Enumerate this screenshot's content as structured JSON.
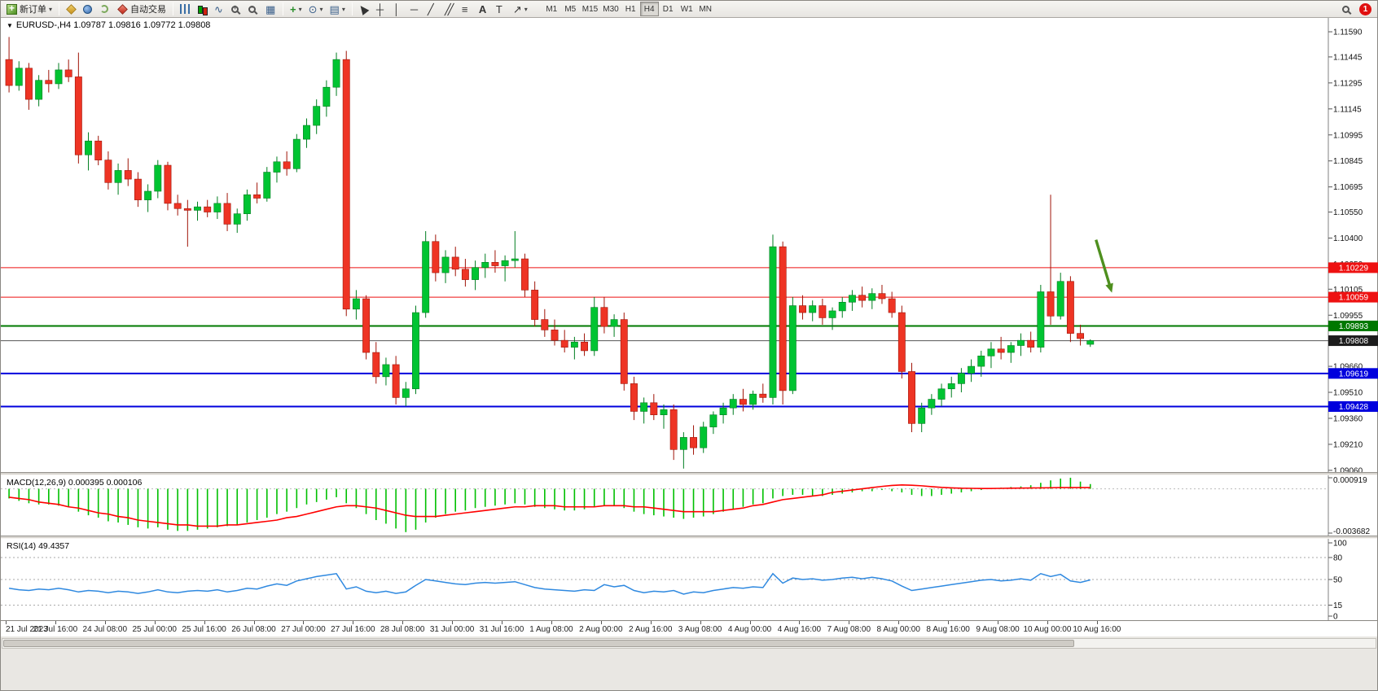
{
  "toolbar": {
    "new_order_label": "新订单",
    "autotrade_label": "自动交易",
    "timeframes": [
      "M1",
      "M5",
      "M15",
      "M30",
      "H1",
      "H4",
      "D1",
      "W1",
      "MN"
    ],
    "active_timeframe": "H4",
    "notification_badge": "1"
  },
  "chart_data": [
    {
      "type": "candlestick",
      "title": "EURUSD-,H4",
      "header": "EURUSD-,H4 1.09787 1.09816 1.09772 1.09808",
      "ohlc_last": {
        "open": 1.09787,
        "high": 1.09816,
        "low": 1.09772,
        "close": 1.09808
      },
      "ylim": [
        1.0905,
        1.1167
      ],
      "y_ticks": [
        1.1159,
        1.11445,
        1.11295,
        1.11145,
        1.10995,
        1.10845,
        1.10695,
        1.1055,
        1.104,
        1.1025,
        1.10105,
        1.09955,
        1.09805,
        1.0966,
        1.0951,
        1.0936,
        1.0921,
        1.0906
      ],
      "y_tick_labels": [
        "1.11590",
        "1.11445",
        "1.11295",
        "1.11145",
        "1.10995",
        "1.10845",
        "1.10695",
        "1.10550",
        "1.10400",
        "1.10250",
        "1.10105",
        "1.09955",
        "1.09805",
        "1.09660",
        "1.09510",
        "1.09360",
        "1.09210",
        "1.09060"
      ],
      "x_labels": [
        "21 Jul 2023",
        "21 Jul 16:00",
        "24 Jul 08:00",
        "25 Jul 00:00",
        "25 Jul 16:00",
        "26 Jul 08:00",
        "27 Jul 00:00",
        "27 Jul 16:00",
        "28 Jul 08:00",
        "31 Jul 00:00",
        "31 Jul 16:00",
        "1 Aug 08:00",
        "2 Aug 00:00",
        "2 Aug 16:00",
        "3 Aug 08:00",
        "4 Aug 00:00",
        "4 Aug 16:00",
        "7 Aug 08:00",
        "8 Aug 00:00",
        "8 Aug 16:00",
        "9 Aug 08:00",
        "10 Aug 00:00",
        "10 Aug 16:00"
      ],
      "h_lines": [
        {
          "price": 1.10229,
          "label": "1.10229",
          "color": "#ee1111",
          "width": 1
        },
        {
          "price": 1.10059,
          "label": "1.10059",
          "color": "#ee1111",
          "width": 1
        },
        {
          "price": 1.09893,
          "label": "1.09893",
          "color": "#007800",
          "width": 2
        },
        {
          "price": 1.09619,
          "label": "1.09619",
          "color": "#0000dd",
          "width": 2
        },
        {
          "price": 1.09428,
          "label": "1.09428",
          "color": "#0000dd",
          "width": 2
        }
      ],
      "bid_line": {
        "price": 1.09808,
        "label": "1.09808",
        "color": "#555555",
        "label_bg": "#1c1c1c"
      },
      "annotation_arrow": {
        "x1_frac": 0.826,
        "price1": 1.1039,
        "x2_frac": 0.838,
        "price2": 1.10085,
        "color": "#4e8f1e"
      },
      "colors": {
        "up": "#00c432",
        "up_stroke": "#007d20",
        "down": "#ee3424",
        "down_stroke": "#a01408"
      },
      "candles": [
        [
          1.1143,
          1.1156,
          1.1124,
          1.1128
        ],
        [
          1.1128,
          1.1142,
          1.1125,
          1.1138
        ],
        [
          1.1138,
          1.1141,
          1.1114,
          1.112
        ],
        [
          1.112,
          1.1134,
          1.1116,
          1.1131
        ],
        [
          1.1131,
          1.1137,
          1.1124,
          1.1129
        ],
        [
          1.1129,
          1.1141,
          1.1126,
          1.1137
        ],
        [
          1.1137,
          1.1143,
          1.113,
          1.1133
        ],
        [
          1.1133,
          1.1147,
          1.1083,
          1.1088
        ],
        [
          1.1088,
          1.1101,
          1.1079,
          1.1096
        ],
        [
          1.1096,
          1.1099,
          1.1082,
          1.1085
        ],
        [
          1.1085,
          1.109,
          1.1068,
          1.1072
        ],
        [
          1.1072,
          1.1083,
          1.1065,
          1.1079
        ],
        [
          1.1079,
          1.1086,
          1.107,
          1.1074
        ],
        [
          1.1074,
          1.1078,
          1.1058,
          1.1062
        ],
        [
          1.1062,
          1.1071,
          1.1055,
          1.1067
        ],
        [
          1.1067,
          1.1085,
          1.1063,
          1.1082
        ],
        [
          1.1082,
          1.1084,
          1.1056,
          1.106
        ],
        [
          1.106,
          1.1065,
          1.1053,
          1.1057
        ],
        [
          1.1057,
          1.1062,
          1.1035,
          1.1056
        ],
        [
          1.1056,
          1.1061,
          1.105,
          1.1058
        ],
        [
          1.1058,
          1.1062,
          1.1052,
          1.1055
        ],
        [
          1.1055,
          1.1064,
          1.1051,
          1.106
        ],
        [
          1.106,
          1.1066,
          1.1044,
          1.1048
        ],
        [
          1.1048,
          1.1057,
          1.1043,
          1.1054
        ],
        [
          1.1054,
          1.1068,
          1.105,
          1.1065
        ],
        [
          1.1065,
          1.1072,
          1.106,
          1.1063
        ],
        [
          1.1063,
          1.1081,
          1.1061,
          1.1078
        ],
        [
          1.1078,
          1.1087,
          1.1072,
          1.1084
        ],
        [
          1.1084,
          1.109,
          1.1076,
          1.108
        ],
        [
          1.108,
          1.11,
          1.1078,
          1.1097
        ],
        [
          1.1097,
          1.1109,
          1.1092,
          1.1105
        ],
        [
          1.1105,
          1.112,
          1.11,
          1.1116
        ],
        [
          1.1116,
          1.1131,
          1.111,
          1.1127
        ],
        [
          1.1127,
          1.1147,
          1.1122,
          1.1143
        ],
        [
          1.1143,
          1.1148,
          1.0995,
          1.0999
        ],
        [
          1.0999,
          1.101,
          1.0993,
          1.1005
        ],
        [
          1.1005,
          1.1007,
          1.097,
          1.0974
        ],
        [
          1.0974,
          1.098,
          1.0956,
          1.096
        ],
        [
          1.096,
          1.0971,
          1.0955,
          1.0967
        ],
        [
          1.0967,
          1.0972,
          1.0944,
          1.0948
        ],
        [
          1.0948,
          1.0957,
          1.0943,
          1.0953
        ],
        [
          1.0953,
          1.1001,
          1.095,
          1.0997
        ],
        [
          1.0997,
          1.1044,
          1.0994,
          1.1038
        ],
        [
          1.1038,
          1.1042,
          1.1015,
          1.102
        ],
        [
          1.102,
          1.1033,
          1.1014,
          1.1029
        ],
        [
          1.1029,
          1.1035,
          1.1018,
          1.1022
        ],
        [
          1.1022,
          1.1028,
          1.1012,
          1.1016
        ],
        [
          1.1016,
          1.1027,
          1.101,
          1.1023
        ],
        [
          1.1023,
          1.1031,
          1.1017,
          1.1026
        ],
        [
          1.1026,
          1.1033,
          1.102,
          1.1024
        ],
        [
          1.1024,
          1.103,
          1.1015,
          1.1027
        ],
        [
          1.1027,
          1.1044,
          1.1023,
          1.1028
        ],
        [
          1.1028,
          1.1031,
          1.1006,
          1.101
        ],
        [
          1.101,
          1.1015,
          1.0989,
          1.0993
        ],
        [
          1.0993,
          1.0999,
          1.0983,
          1.0987
        ],
        [
          1.0987,
          1.0993,
          1.0978,
          1.0981
        ],
        [
          1.0981,
          1.0987,
          1.0974,
          1.0977
        ],
        [
          1.0977,
          1.0983,
          1.097,
          1.098
        ],
        [
          1.098,
          1.0985,
          1.0972,
          1.0975
        ],
        [
          1.0975,
          1.1006,
          1.0972,
          1.1
        ],
        [
          1.1,
          1.1006,
          1.0985,
          1.0989
        ],
        [
          1.0989,
          1.0996,
          1.0983,
          1.0993
        ],
        [
          1.0993,
          1.0997,
          1.0952,
          1.0956
        ],
        [
          1.0956,
          1.096,
          1.0935,
          1.094
        ],
        [
          1.094,
          1.0948,
          1.0933,
          1.0945
        ],
        [
          1.0945,
          1.095,
          1.0935,
          1.0938
        ],
        [
          1.0938,
          1.0944,
          1.093,
          1.0941
        ],
        [
          1.0941,
          1.0944,
          1.0912,
          1.0918
        ],
        [
          1.0918,
          1.0928,
          1.0907,
          1.0925
        ],
        [
          1.0925,
          1.0932,
          1.0915,
          1.0919
        ],
        [
          1.0919,
          1.0934,
          1.0916,
          1.0931
        ],
        [
          1.0931,
          1.094,
          1.0927,
          1.0938
        ],
        [
          1.0938,
          1.0945,
          1.0933,
          1.0942
        ],
        [
          1.0942,
          1.095,
          1.0938,
          1.0947
        ],
        [
          1.0947,
          1.0953,
          1.094,
          1.0944
        ],
        [
          1.0944,
          1.0952,
          1.0941,
          1.095
        ],
        [
          1.095,
          1.0956,
          1.0945,
          1.0948
        ],
        [
          1.0948,
          1.1042,
          1.0944,
          1.1035
        ],
        [
          1.1035,
          1.1038,
          1.0944,
          1.0952
        ],
        [
          1.0952,
          1.1006,
          1.095,
          1.1001
        ],
        [
          1.1001,
          1.1007,
          1.0993,
          1.0997
        ],
        [
          1.0997,
          1.1004,
          1.0992,
          1.1001
        ],
        [
          1.1001,
          1.1005,
          1.099,
          1.0994
        ],
        [
          1.0994,
          1.1,
          1.0987,
          1.0998
        ],
        [
          1.0998,
          1.1006,
          1.0994,
          1.1003
        ],
        [
          1.1003,
          1.101,
          1.0998,
          1.1007
        ],
        [
          1.1007,
          1.1012,
          1.1,
          1.1004
        ],
        [
          1.1004,
          1.1011,
          1.0999,
          1.1008
        ],
        [
          1.1008,
          1.1013,
          1.1002,
          1.1005
        ],
        [
          1.1005,
          1.1009,
          1.0994,
          1.0997
        ],
        [
          1.0997,
          1.1001,
          1.0959,
          1.0963
        ],
        [
          1.0963,
          1.0968,
          1.0928,
          1.0933
        ],
        [
          1.0933,
          1.0945,
          1.0928,
          1.0942
        ],
        [
          1.0942,
          1.095,
          1.0938,
          1.0947
        ],
        [
          1.0947,
          1.0956,
          1.0943,
          1.0953
        ],
        [
          1.0953,
          1.096,
          1.0948,
          1.0956
        ],
        [
          1.0956,
          1.0965,
          1.0951,
          1.0962
        ],
        [
          1.0962,
          1.097,
          1.0957,
          1.0966
        ],
        [
          1.0966,
          1.0975,
          1.096,
          1.0972
        ],
        [
          1.0972,
          1.098,
          1.0965,
          1.0976
        ],
        [
          1.0976,
          1.0983,
          1.097,
          1.0974
        ],
        [
          1.0974,
          1.098,
          1.0968,
          1.0978
        ],
        [
          1.0978,
          1.0985,
          1.0972,
          1.0981
        ],
        [
          1.0981,
          1.0986,
          1.0974,
          1.0977
        ],
        [
          1.0977,
          1.1013,
          1.0974,
          1.1009
        ],
        [
          1.1009,
          1.1065,
          1.099,
          1.0995
        ],
        [
          1.0995,
          1.102,
          1.0993,
          1.1015
        ],
        [
          1.1015,
          1.1018,
          1.098,
          1.0985
        ],
        [
          1.0985,
          1.099,
          1.0978,
          1.0982
        ],
        [
          1.09787,
          1.09816,
          1.09772,
          1.09808
        ]
      ]
    },
    {
      "type": "macd_histogram",
      "label": "MACD(12,26,9) 0.000395 0.000106",
      "value_main": 0.000395,
      "value_signal": 0.000106,
      "ylim": [
        -0.003682,
        0.000919
      ],
      "y_tick_labels": [
        "0.000919",
        "-0.003682"
      ],
      "colors": {
        "histogram": "#00c000",
        "signal": "#ff0000"
      },
      "histogram": [
        -0.0008,
        -0.001,
        -0.0012,
        -0.0013,
        -0.0013,
        -0.0014,
        -0.0015,
        -0.0019,
        -0.0022,
        -0.0024,
        -0.0027,
        -0.0028,
        -0.003,
        -0.0032,
        -0.0033,
        -0.0032,
        -0.0034,
        -0.0035,
        -0.0035,
        -0.0034,
        -0.0033,
        -0.0032,
        -0.0031,
        -0.003,
        -0.0028,
        -0.0026,
        -0.0024,
        -0.0021,
        -0.0019,
        -0.0016,
        -0.0013,
        -0.0011,
        -0.0009,
        -0.0007,
        -0.0012,
        -0.0016,
        -0.0021,
        -0.0026,
        -0.0029,
        -0.0033,
        -0.0036,
        -0.0034,
        -0.0028,
        -0.0024,
        -0.0021,
        -0.0019,
        -0.0018,
        -0.0016,
        -0.0015,
        -0.0014,
        -0.0013,
        -0.0012,
        -0.0013,
        -0.0015,
        -0.0016,
        -0.0017,
        -0.0018,
        -0.0018,
        -0.0017,
        -0.0015,
        -0.0014,
        -0.0014,
        -0.0016,
        -0.0019,
        -0.0021,
        -0.0022,
        -0.0023,
        -0.0024,
        -0.0025,
        -0.0024,
        -0.0023,
        -0.0021,
        -0.0019,
        -0.0017,
        -0.0015,
        -0.0013,
        -0.0012,
        -0.0008,
        -0.0006,
        -0.0005,
        -0.0005,
        -0.0006,
        -0.0006,
        -0.0005,
        -0.0004,
        -0.0003,
        -0.0002,
        -0.0002,
        -0.0001,
        -0.0002,
        -0.0003,
        -0.0005,
        -0.0006,
        -0.0006,
        -0.0005,
        -0.0004,
        -0.0003,
        -0.0002,
        -0.0001,
        5e-05,
        0.0001,
        0.00015,
        0.0002,
        0.0003,
        0.0005,
        0.0007,
        0.00085,
        0.000919,
        0.0006,
        0.000395
      ],
      "signal": [
        -0.0007,
        -0.0008,
        -0.0009,
        -0.0011,
        -0.0012,
        -0.0013,
        -0.0015,
        -0.0016,
        -0.0018,
        -0.002,
        -0.0021,
        -0.0023,
        -0.0024,
        -0.0026,
        -0.0027,
        -0.0028,
        -0.0029,
        -0.003,
        -0.003,
        -0.0031,
        -0.0031,
        -0.0031,
        -0.003,
        -0.003,
        -0.0029,
        -0.0028,
        -0.0027,
        -0.0026,
        -0.0024,
        -0.0023,
        -0.0021,
        -0.0019,
        -0.0017,
        -0.0015,
        -0.0014,
        -0.0014,
        -0.0015,
        -0.0016,
        -0.0018,
        -0.002,
        -0.0022,
        -0.0023,
        -0.0023,
        -0.0023,
        -0.0022,
        -0.0021,
        -0.002,
        -0.0019,
        -0.0018,
        -0.0017,
        -0.0016,
        -0.0015,
        -0.0015,
        -0.0014,
        -0.0014,
        -0.0014,
        -0.0015,
        -0.0015,
        -0.0015,
        -0.0015,
        -0.0014,
        -0.0014,
        -0.0014,
        -0.0015,
        -0.0015,
        -0.0016,
        -0.0017,
        -0.0018,
        -0.0019,
        -0.0019,
        -0.0019,
        -0.0019,
        -0.0018,
        -0.0017,
        -0.0016,
        -0.0014,
        -0.0013,
        -0.0011,
        -0.0009,
        -0.0008,
        -0.0007,
        -0.0006,
        -0.0005,
        -0.0003,
        -0.0002,
        -0.0001,
        0.0,
        0.0001,
        0.0002,
        0.00028,
        0.00032,
        0.0003,
        0.00025,
        0.00018,
        0.00012,
        8e-05,
        5e-05,
        4e-05,
        3e-05,
        3e-05,
        4e-05,
        5e-05,
        6e-05,
        7e-05,
        8e-05,
        9e-05,
        0.0001,
        0.0001,
        0.0001,
        0.000106
      ]
    },
    {
      "type": "line",
      "label": "RSI(14) 49.4357",
      "last_value": 49.4357,
      "ylim": [
        0,
        100
      ],
      "y_ticks": [
        100,
        80,
        50,
        15,
        0
      ],
      "levels": [
        80,
        50,
        15
      ],
      "color": "#2f89e0",
      "values": [
        38,
        36,
        35,
        37,
        36,
        38,
        36,
        33,
        35,
        34,
        32,
        34,
        33,
        31,
        33,
        36,
        33,
        32,
        34,
        35,
        34,
        36,
        33,
        35,
        38,
        37,
        41,
        44,
        42,
        48,
        51,
        54,
        56,
        58,
        37,
        40,
        34,
        32,
        34,
        31,
        33,
        42,
        50,
        48,
        46,
        44,
        43,
        45,
        46,
        45,
        46,
        47,
        43,
        39,
        37,
        36,
        35,
        34,
        36,
        35,
        43,
        40,
        42,
        35,
        32,
        34,
        33,
        35,
        30,
        33,
        32,
        35,
        37,
        39,
        38,
        40,
        39,
        58,
        45,
        52,
        50,
        51,
        49,
        50,
        52,
        53,
        51,
        53,
        51,
        48,
        41,
        35,
        37,
        39,
        41,
        43,
        45,
        47,
        49,
        50,
        48,
        49,
        51,
        49,
        58,
        54,
        57,
        48,
        46,
        49.4357
      ]
    }
  ]
}
